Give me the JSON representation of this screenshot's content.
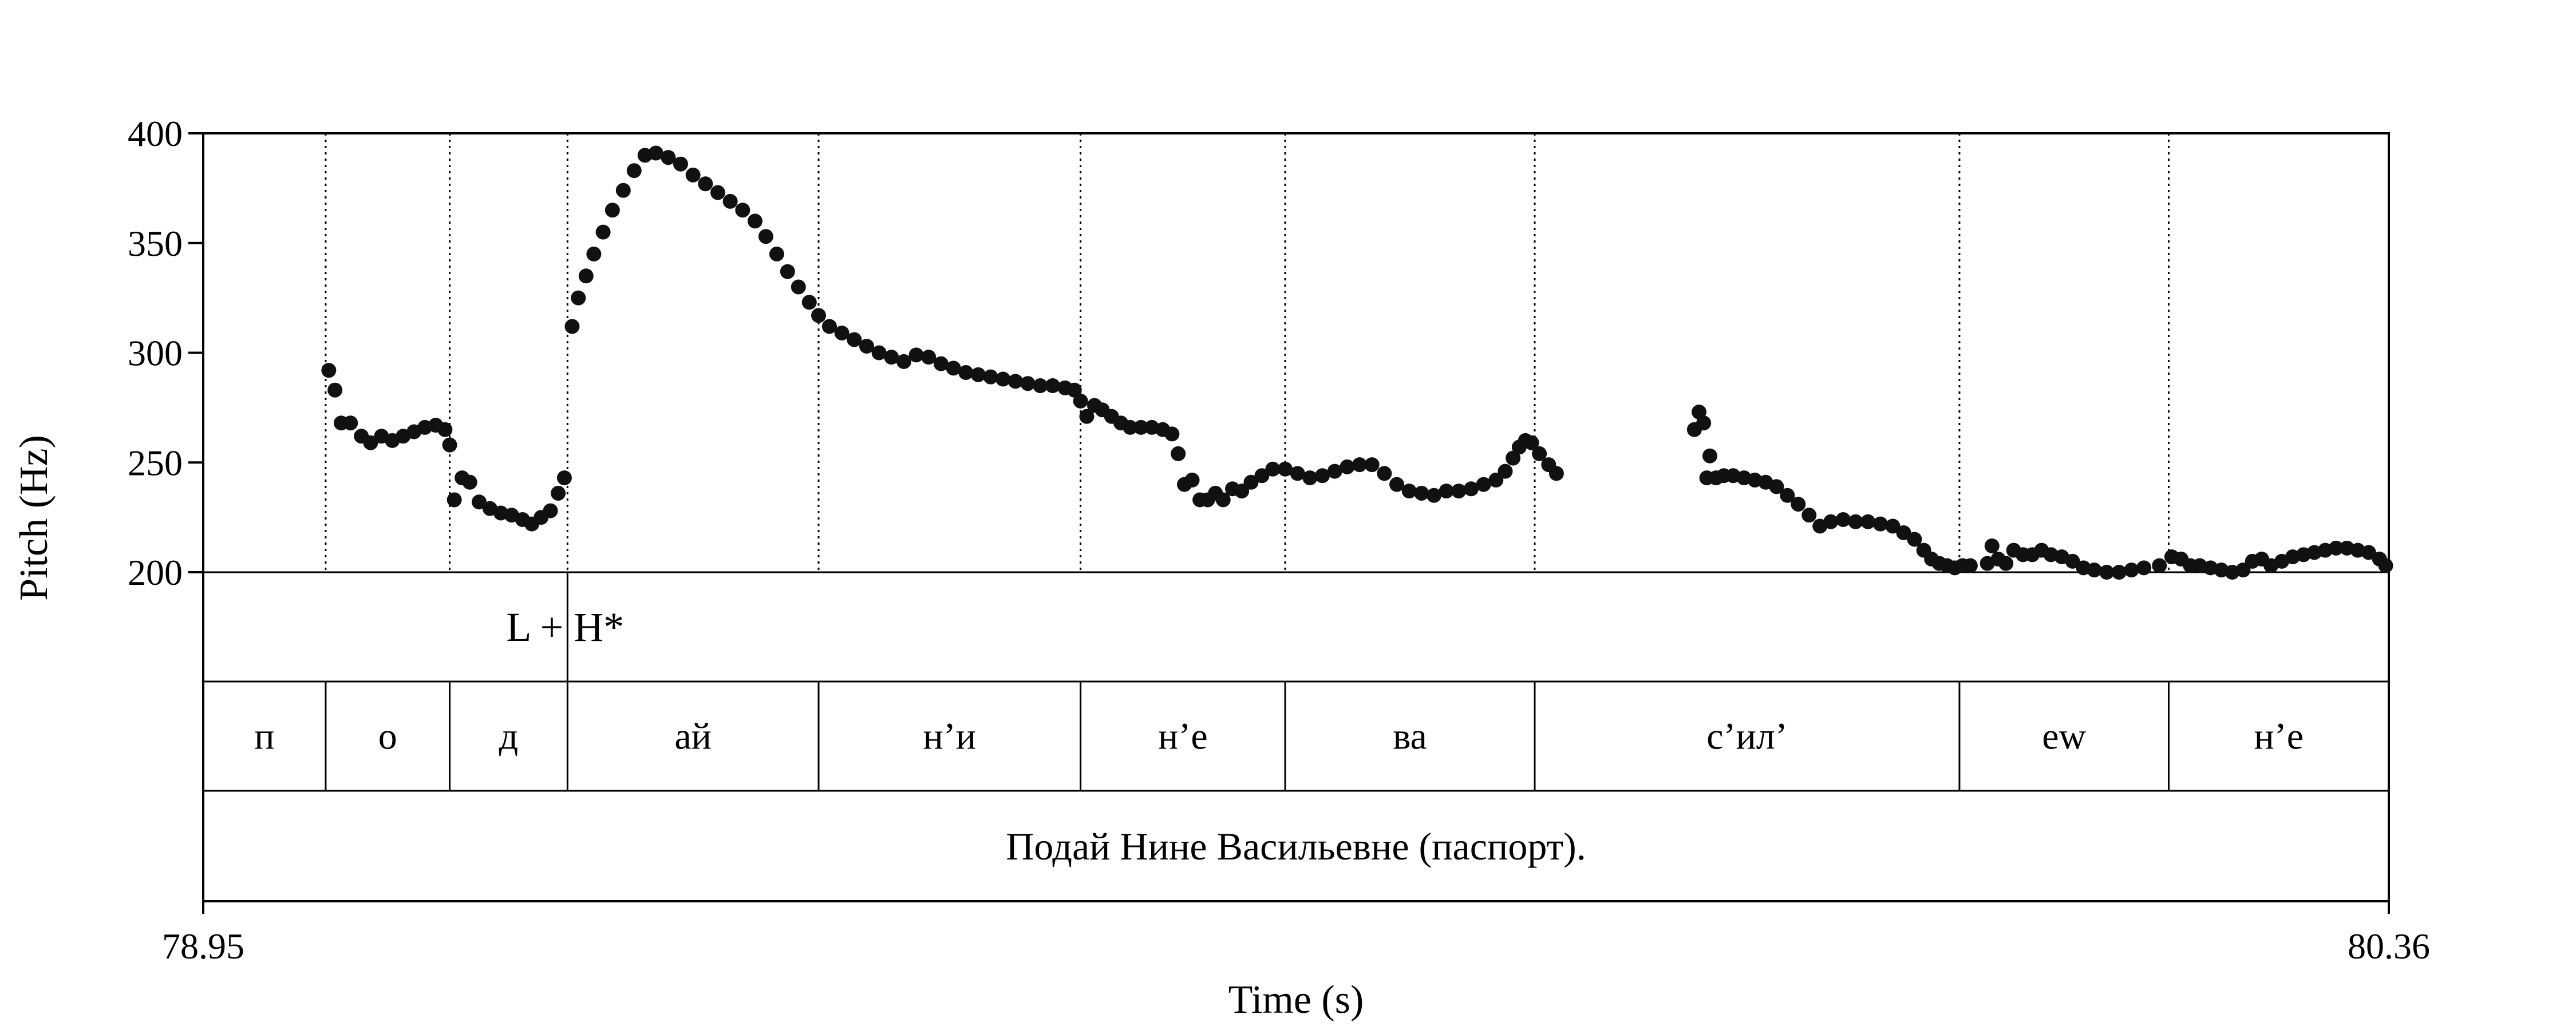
{
  "chart_data": {
    "type": "scatter",
    "xlabel": "Time (s)",
    "ylabel": "Pitch (Hz)",
    "xlim": [
      78.95,
      80.36
    ],
    "ylim": [
      200,
      400
    ],
    "x_tick_labels": [
      "78.95",
      "80.36"
    ],
    "y_ticks": [
      200,
      250,
      300,
      350,
      400
    ],
    "y_tick_labels": [
      "200",
      "250",
      "300",
      "350",
      "400"
    ],
    "grid": false,
    "segment_boundaries": [
      79.029,
      79.109,
      79.185,
      79.347,
      79.516,
      79.648,
      79.809,
      80.083,
      80.218
    ],
    "tone_tier": [
      {
        "label": "L + H*",
        "time": 79.185
      }
    ],
    "segments": [
      {
        "label": "п",
        "start": 78.95,
        "end": 79.029
      },
      {
        "label": "о",
        "start": 79.029,
        "end": 79.109
      },
      {
        "label": "д",
        "start": 79.109,
        "end": 79.185
      },
      {
        "label": "ай",
        "start": 79.185,
        "end": 79.347
      },
      {
        "label": "н’и",
        "start": 79.347,
        "end": 79.516
      },
      {
        "label": "н’е",
        "start": 79.516,
        "end": 79.648
      },
      {
        "label": "ва",
        "start": 79.648,
        "end": 79.809
      },
      {
        "label": "с’ил’",
        "start": 79.809,
        "end": 80.083
      },
      {
        "label": "ew",
        "start": 80.083,
        "end": 80.218
      },
      {
        "label": "н’е",
        "start": 80.218,
        "end": 80.36
      }
    ],
    "sentence": "Подай Нине Васильевне (паспорт).",
    "pitch_segments": [
      [
        [
          79.031,
          292
        ],
        [
          79.035,
          283
        ],
        [
          79.039,
          268
        ],
        [
          79.045,
          268
        ],
        [
          79.052,
          262
        ],
        [
          79.058,
          259
        ],
        [
          79.065,
          262
        ],
        [
          79.072,
          260
        ],
        [
          79.079,
          262
        ],
        [
          79.086,
          264
        ],
        [
          79.093,
          266
        ],
        [
          79.1,
          267
        ],
        [
          79.106,
          265
        ],
        [
          79.109,
          258
        ],
        [
          79.112,
          233
        ],
        [
          79.117,
          243
        ],
        [
          79.122,
          241
        ],
        [
          79.128,
          232
        ],
        [
          79.135,
          229
        ],
        [
          79.142,
          227
        ],
        [
          79.149,
          226
        ],
        [
          79.156,
          224
        ],
        [
          79.162,
          222
        ],
        [
          79.168,
          225
        ],
        [
          79.174,
          228
        ],
        [
          79.179,
          236
        ],
        [
          79.183,
          243
        ]
      ],
      [
        [
          79.188,
          312
        ],
        [
          79.192,
          325
        ],
        [
          79.197,
          335
        ],
        [
          79.202,
          345
        ],
        [
          79.208,
          355
        ],
        [
          79.214,
          365
        ],
        [
          79.221,
          374
        ],
        [
          79.228,
          383
        ],
        [
          79.235,
          390
        ],
        [
          79.242,
          391
        ],
        [
          79.25,
          389
        ],
        [
          79.258,
          386
        ],
        [
          79.266,
          381
        ],
        [
          79.274,
          377
        ],
        [
          79.282,
          373
        ],
        [
          79.29,
          369
        ],
        [
          79.298,
          365
        ],
        [
          79.306,
          360
        ],
        [
          79.313,
          353
        ],
        [
          79.32,
          345
        ],
        [
          79.327,
          337
        ],
        [
          79.334,
          330
        ],
        [
          79.341,
          323
        ],
        [
          79.347,
          317
        ],
        [
          79.354,
          312
        ],
        [
          79.362,
          309
        ],
        [
          79.37,
          306
        ],
        [
          79.378,
          303
        ],
        [
          79.386,
          300
        ],
        [
          79.394,
          298
        ],
        [
          79.402,
          296
        ],
        [
          79.41,
          299
        ],
        [
          79.418,
          298
        ],
        [
          79.426,
          295
        ],
        [
          79.434,
          293
        ],
        [
          79.442,
          291
        ],
        [
          79.45,
          290
        ],
        [
          79.458,
          289
        ],
        [
          79.466,
          288
        ],
        [
          79.474,
          287
        ],
        [
          79.482,
          286
        ],
        [
          79.49,
          285
        ],
        [
          79.498,
          285
        ],
        [
          79.506,
          284
        ],
        [
          79.512,
          283
        ],
        [
          79.516,
          278
        ],
        [
          79.52,
          271
        ],
        [
          79.525,
          276
        ],
        [
          79.53,
          274
        ],
        [
          79.536,
          271
        ],
        [
          79.542,
          268
        ],
        [
          79.548,
          266
        ],
        [
          79.555,
          266
        ],
        [
          79.562,
          266
        ],
        [
          79.569,
          265
        ],
        [
          79.575,
          263
        ],
        [
          79.579,
          254
        ],
        [
          79.583,
          240
        ],
        [
          79.588,
          242
        ],
        [
          79.593,
          233
        ],
        [
          79.598,
          233
        ],
        [
          79.603,
          236
        ],
        [
          79.608,
          233
        ],
        [
          79.614,
          238
        ],
        [
          79.62,
          237
        ],
        [
          79.626,
          241
        ],
        [
          79.633,
          244
        ],
        [
          79.64,
          247
        ],
        [
          79.648,
          247
        ],
        [
          79.656,
          245
        ],
        [
          79.664,
          243
        ],
        [
          79.672,
          244
        ],
        [
          79.68,
          246
        ],
        [
          79.688,
          248
        ],
        [
          79.696,
          249
        ],
        [
          79.704,
          249
        ],
        [
          79.712,
          245
        ],
        [
          79.72,
          240
        ],
        [
          79.728,
          237
        ],
        [
          79.736,
          236
        ],
        [
          79.744,
          235
        ],
        [
          79.752,
          237
        ],
        [
          79.76,
          237
        ],
        [
          79.768,
          238
        ],
        [
          79.776,
          240
        ],
        [
          79.784,
          242
        ],
        [
          79.79,
          246
        ],
        [
          79.795,
          252
        ],
        [
          79.799,
          257
        ],
        [
          79.803,
          260
        ],
        [
          79.807,
          259
        ],
        [
          79.812,
          254
        ],
        [
          79.818,
          249
        ],
        [
          79.823,
          245
        ]
      ],
      [
        [
          79.912,
          265
        ],
        [
          79.915,
          273
        ],
        [
          79.918,
          268
        ],
        [
          79.92,
          243
        ],
        [
          79.922,
          253
        ],
        [
          79.926,
          243
        ],
        [
          79.931,
          244
        ],
        [
          79.937,
          244
        ],
        [
          79.944,
          243
        ],
        [
          79.951,
          242
        ],
        [
          79.958,
          241
        ],
        [
          79.965,
          239
        ],
        [
          79.972,
          235
        ],
        [
          79.979,
          231
        ],
        [
          79.986,
          226
        ],
        [
          79.993,
          221
        ],
        [
          80.0,
          223
        ],
        [
          80.008,
          224
        ],
        [
          80.016,
          223
        ],
        [
          80.024,
          223
        ],
        [
          80.032,
          222
        ],
        [
          80.04,
          221
        ],
        [
          80.047,
          218
        ],
        [
          80.054,
          215
        ],
        [
          80.06,
          210
        ],
        [
          80.065,
          206
        ],
        [
          80.07,
          204
        ],
        [
          80.075,
          203
        ],
        [
          80.08,
          202
        ],
        [
          80.085,
          203
        ],
        [
          80.09,
          203
        ]
      ],
      [
        [
          80.101,
          204
        ],
        [
          80.104,
          212
        ],
        [
          80.108,
          206
        ],
        [
          80.113,
          204
        ],
        [
          80.118,
          210
        ],
        [
          80.124,
          208
        ],
        [
          80.13,
          208
        ],
        [
          80.136,
          210
        ],
        [
          80.142,
          208
        ],
        [
          80.149,
          207
        ],
        [
          80.156,
          205
        ],
        [
          80.163,
          202
        ],
        [
          80.17,
          201
        ],
        [
          80.178,
          200
        ],
        [
          80.186,
          200
        ],
        [
          80.194,
          201
        ],
        [
          80.202,
          202
        ],
        [
          80.212,
          203
        ]
      ],
      [
        [
          80.22,
          207
        ],
        [
          80.226,
          206
        ],
        [
          80.232,
          203
        ],
        [
          80.238,
          203
        ],
        [
          80.245,
          202
        ],
        [
          80.252,
          201
        ],
        [
          80.259,
          200
        ],
        [
          80.266,
          201
        ],
        [
          80.272,
          205
        ],
        [
          80.278,
          206
        ],
        [
          80.284,
          203
        ],
        [
          80.291,
          205
        ],
        [
          80.298,
          207
        ],
        [
          80.305,
          208
        ],
        [
          80.312,
          209
        ],
        [
          80.319,
          210
        ],
        [
          80.326,
          211
        ],
        [
          80.333,
          211
        ],
        [
          80.34,
          210
        ],
        [
          80.347,
          209
        ],
        [
          80.354,
          206
        ],
        [
          80.358,
          203
        ]
      ]
    ]
  }
}
